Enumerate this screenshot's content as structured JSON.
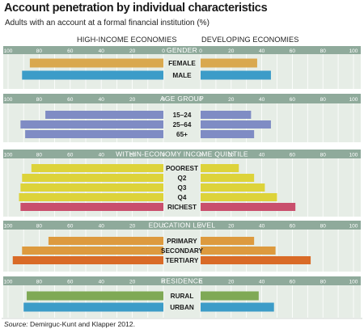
{
  "title": "Account penetration by individual characteristics",
  "subtitle": "Adults with an account at a formal financial institution (%)",
  "left_header": "HIGH-INCOME ECONOMIES",
  "right_header": "DEVELOPING ECONOMIES",
  "source_label": "Source:",
  "source_text": "Demirguc-Kunt and Klapper 2012.",
  "colors": {
    "panel_bg": "#e6ede6",
    "band_bg": "#8faa9b",
    "grid": "#ffffff",
    "gender": "#d9a84e",
    "male": "#3c9cc8",
    "age": "#7f8cc4",
    "income": "#ddd33a",
    "richest": "#c94f6d",
    "education": "#dd9a3e",
    "tertiary": "#d96b27",
    "residence": "#7fa955",
    "urban": "#3c9cc8"
  },
  "chart_data": {
    "type": "bar",
    "orientation": "horizontal-back-to-back",
    "left_axis_ticks": [
      "100",
      "80",
      "60",
      "40",
      "20",
      "0"
    ],
    "right_axis_ticks": [
      "0",
      "20",
      "40",
      "60",
      "80",
      "100"
    ],
    "xlim": [
      0,
      100
    ],
    "series_names": [
      "HIGH-INCOME ECONOMIES",
      "DEVELOPING ECONOMIES"
    ],
    "groups": [
      {
        "label": "GENDER",
        "rows": [
          {
            "label": "FEMALE",
            "high_income": 86,
            "developing": 37,
            "color": "gender"
          },
          {
            "label": "MALE",
            "high_income": 91,
            "developing": 46,
            "color": "male"
          }
        ]
      },
      {
        "label": "AGE GROUP",
        "rows": [
          {
            "label": "15–24",
            "high_income": 76,
            "developing": 33,
            "color": "age"
          },
          {
            "label": "25–64",
            "high_income": 92,
            "developing": 46,
            "color": "age"
          },
          {
            "label": "65+",
            "high_income": 89,
            "developing": 35,
            "color": "age"
          }
        ]
      },
      {
        "label": "WITHIN-ECONOMY INCOME QUINTILE",
        "rows": [
          {
            "label": "POOREST",
            "high_income": 85,
            "developing": 25,
            "color": "income"
          },
          {
            "label": "Q2",
            "high_income": 91,
            "developing": 35,
            "color": "income"
          },
          {
            "label": "Q3",
            "high_income": 92,
            "developing": 42,
            "color": "income"
          },
          {
            "label": "Q4",
            "high_income": 93,
            "developing": 50,
            "color": "income"
          },
          {
            "label": "RICHEST",
            "high_income": 92,
            "developing": 62,
            "color": "richest"
          }
        ]
      },
      {
        "label": "EDUCATION LEVEL",
        "rows": [
          {
            "label": "PRIMARY",
            "high_income": 74,
            "developing": 35,
            "color": "education"
          },
          {
            "label": "SECONDARY",
            "high_income": 91,
            "developing": 49,
            "color": "education"
          },
          {
            "label": "TERTIARY",
            "high_income": 97,
            "developing": 72,
            "color": "tertiary"
          }
        ]
      },
      {
        "label": "RESIDENCE",
        "rows": [
          {
            "label": "RURAL",
            "high_income": 88,
            "developing": 38,
            "color": "residence"
          },
          {
            "label": "URBAN",
            "high_income": 90,
            "developing": 48,
            "color": "urban"
          }
        ]
      }
    ]
  }
}
